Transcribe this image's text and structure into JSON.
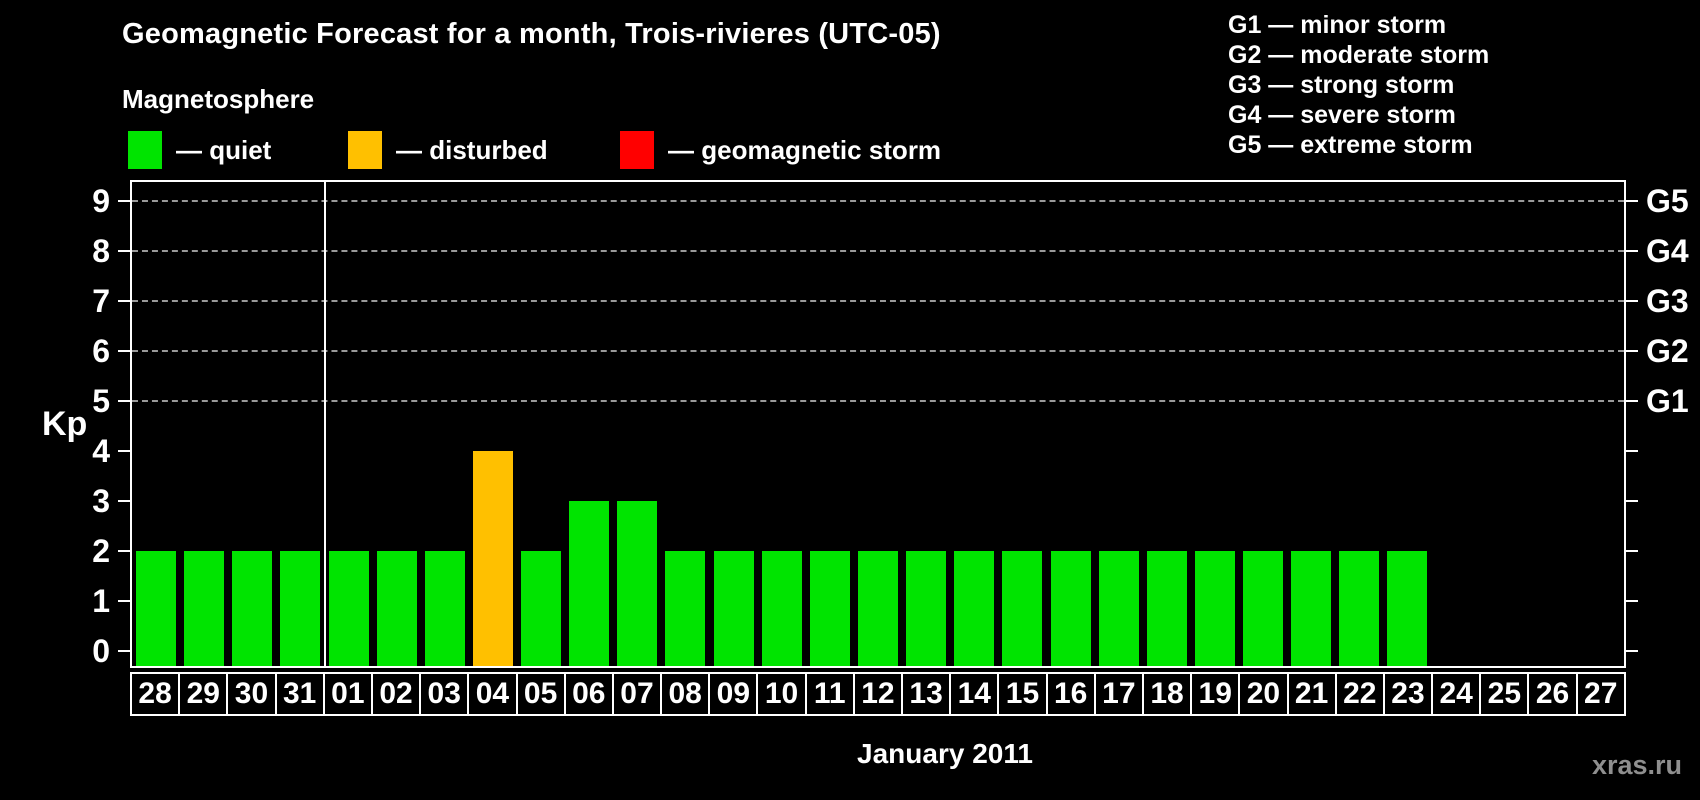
{
  "header": {
    "title": "Geomagnetic Forecast for a month, Trois-rivieres (UTC-05)",
    "subtitle": "Magnetosphere",
    "legend_dash": "—",
    "legend": [
      {
        "status": "quiet",
        "label": "quiet",
        "color": "#00e400"
      },
      {
        "status": "disturbed",
        "label": "disturbed",
        "color": "#ffc000"
      },
      {
        "status": "storm",
        "label": "geomagnetic storm",
        "color": "#ff0000"
      }
    ],
    "storm_scale": [
      {
        "code": "G1",
        "label": "minor storm"
      },
      {
        "code": "G2",
        "label": "moderate storm"
      },
      {
        "code": "G3",
        "label": "strong storm"
      },
      {
        "code": "G4",
        "label": "severe storm"
      },
      {
        "code": "G5",
        "label": "extreme storm"
      }
    ]
  },
  "chart_data": {
    "type": "bar",
    "title": "Geomagnetic Forecast for a month, Trois-rivieres (UTC-05)",
    "ylabel": "Kp",
    "xlabel": "January 2011",
    "ylim": [
      0,
      9
    ],
    "yticks": [
      0,
      1,
      2,
      3,
      4,
      5,
      6,
      7,
      8,
      9
    ],
    "gridlines_at": [
      5,
      6,
      7,
      8,
      9
    ],
    "grid_style": "dashed horizontal gray",
    "legend_position": "top",
    "right_axis": [
      {
        "kp": 5,
        "label": "G1"
      },
      {
        "kp": 6,
        "label": "G2"
      },
      {
        "kp": 7,
        "label": "G3"
      },
      {
        "kp": 8,
        "label": "G4"
      },
      {
        "kp": 9,
        "label": "G5"
      }
    ],
    "categories": [
      "28",
      "29",
      "30",
      "31",
      "01",
      "02",
      "03",
      "04",
      "05",
      "06",
      "07",
      "08",
      "09",
      "10",
      "11",
      "12",
      "13",
      "14",
      "15",
      "16",
      "17",
      "18",
      "19",
      "20",
      "21",
      "22",
      "23",
      "24",
      "25",
      "26",
      "27"
    ],
    "values": [
      2,
      2,
      2,
      2,
      2,
      2,
      2,
      4,
      2,
      3,
      3,
      2,
      2,
      2,
      2,
      2,
      2,
      2,
      2,
      2,
      2,
      2,
      2,
      2,
      2,
      2,
      2,
      null,
      null,
      null,
      null
    ],
    "statuses": [
      "quiet",
      "quiet",
      "quiet",
      "quiet",
      "quiet",
      "quiet",
      "quiet",
      "disturbed",
      "quiet",
      "quiet",
      "quiet",
      "quiet",
      "quiet",
      "quiet",
      "quiet",
      "quiet",
      "quiet",
      "quiet",
      "quiet",
      "quiet",
      "quiet",
      "quiet",
      "quiet",
      "quiet",
      "quiet",
      "quiet",
      "quiet",
      null,
      null,
      null,
      null
    ],
    "month_separator_after_index": 3,
    "bar_colors": {
      "quiet": "#00e400",
      "disturbed": "#ffc000",
      "storm": "#ff0000"
    }
  },
  "footer": {
    "month_label": "January 2011",
    "watermark": "xras.ru"
  }
}
